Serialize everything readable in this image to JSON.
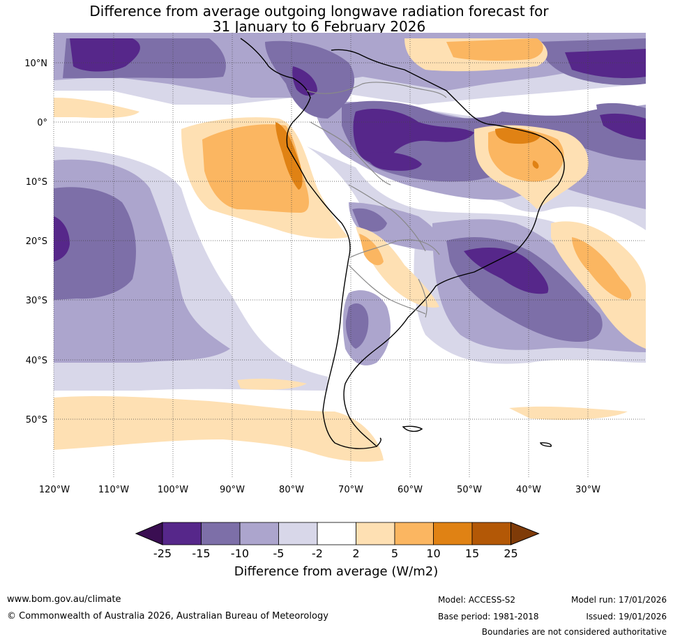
{
  "title": {
    "line1": "Difference from average outgoing longwave radiation forecast for",
    "line2": "31 January to 6 February 2026"
  },
  "map": {
    "lat_labels": [
      "10°N",
      "0°",
      "10°S",
      "20°S",
      "30°S",
      "40°S",
      "50°S"
    ],
    "lon_labels": [
      "120°W",
      "110°W",
      "100°W",
      "90°W",
      "80°W",
      "70°W",
      "60°W",
      "50°W",
      "40°W",
      "30°W"
    ]
  },
  "legend": {
    "tick_labels": [
      "-25",
      "-15",
      "-10",
      "-5",
      "-2",
      "2",
      "5",
      "10",
      "15",
      "25"
    ],
    "colors": [
      "#3a0e52",
      "#56278a",
      "#7d6fa8",
      "#aca5cd",
      "#d8d7e9",
      "#ffffff",
      "#fee0b3",
      "#fbb661",
      "#e08214",
      "#b35806",
      "#7f3b08"
    ],
    "label": "Difference from average (W/m2)"
  },
  "footer": {
    "url": "www.bom.gov.au/climate",
    "copyright": "© Commonwealth of Australia 2026, Australian Bureau of Meteorology",
    "model": "Model: ACCESS-S2",
    "base_period": "Base period: 1981-2018",
    "model_run": "Model run: 17/01/2026",
    "issued": "Issued: 19/01/2026",
    "disclaimer": "Boundaries are not considered authoritative"
  }
}
